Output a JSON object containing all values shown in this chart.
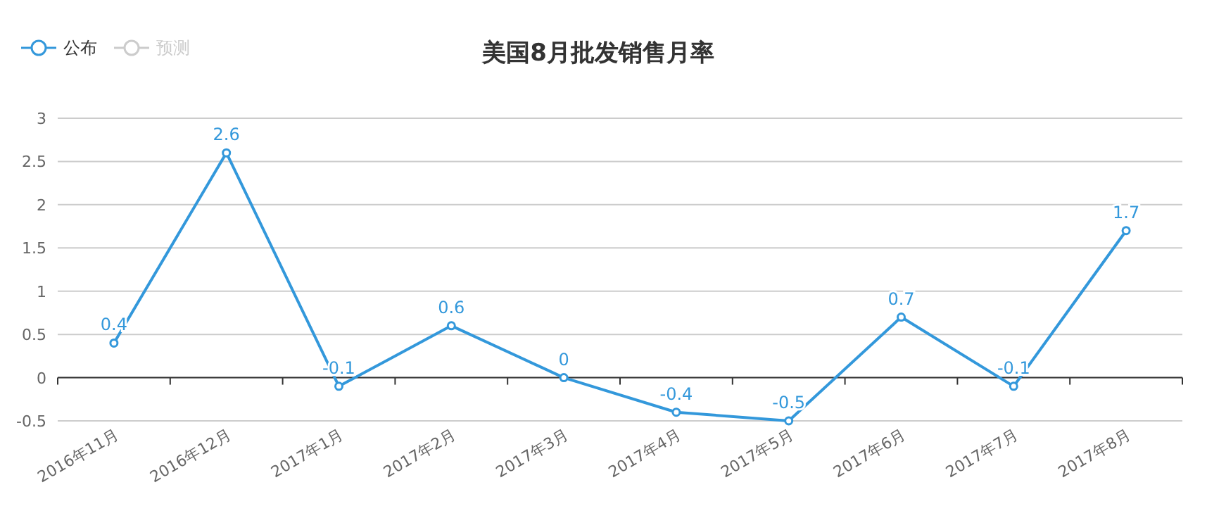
{
  "chart_data": {
    "type": "line",
    "title": "美国8月批发销售月率",
    "categories": [
      "2016年11月",
      "2016年12月",
      "2017年1月",
      "2017年2月",
      "2017年3月",
      "2017年4月",
      "2017年5月",
      "2017年6月",
      "2017年7月",
      "2017年8月"
    ],
    "series": [
      {
        "name": "公布",
        "color": "#3398db",
        "values": [
          0.4,
          2.6,
          -0.1,
          0.6,
          0,
          -0.4,
          -0.5,
          0.7,
          -0.1,
          1.7
        ]
      },
      {
        "name": "预测",
        "color": "#cccccc",
        "values": [
          null,
          null,
          null,
          null,
          null,
          null,
          null,
          null,
          null,
          null
        ]
      }
    ],
    "ylim": [
      -0.5,
      3
    ],
    "yticks": [
      -0.5,
      0,
      0.5,
      1,
      1.5,
      2,
      2.5,
      3
    ],
    "grid": "y",
    "legend": "top left",
    "marker": "circle",
    "line_style": "solid",
    "data_labels": true
  }
}
